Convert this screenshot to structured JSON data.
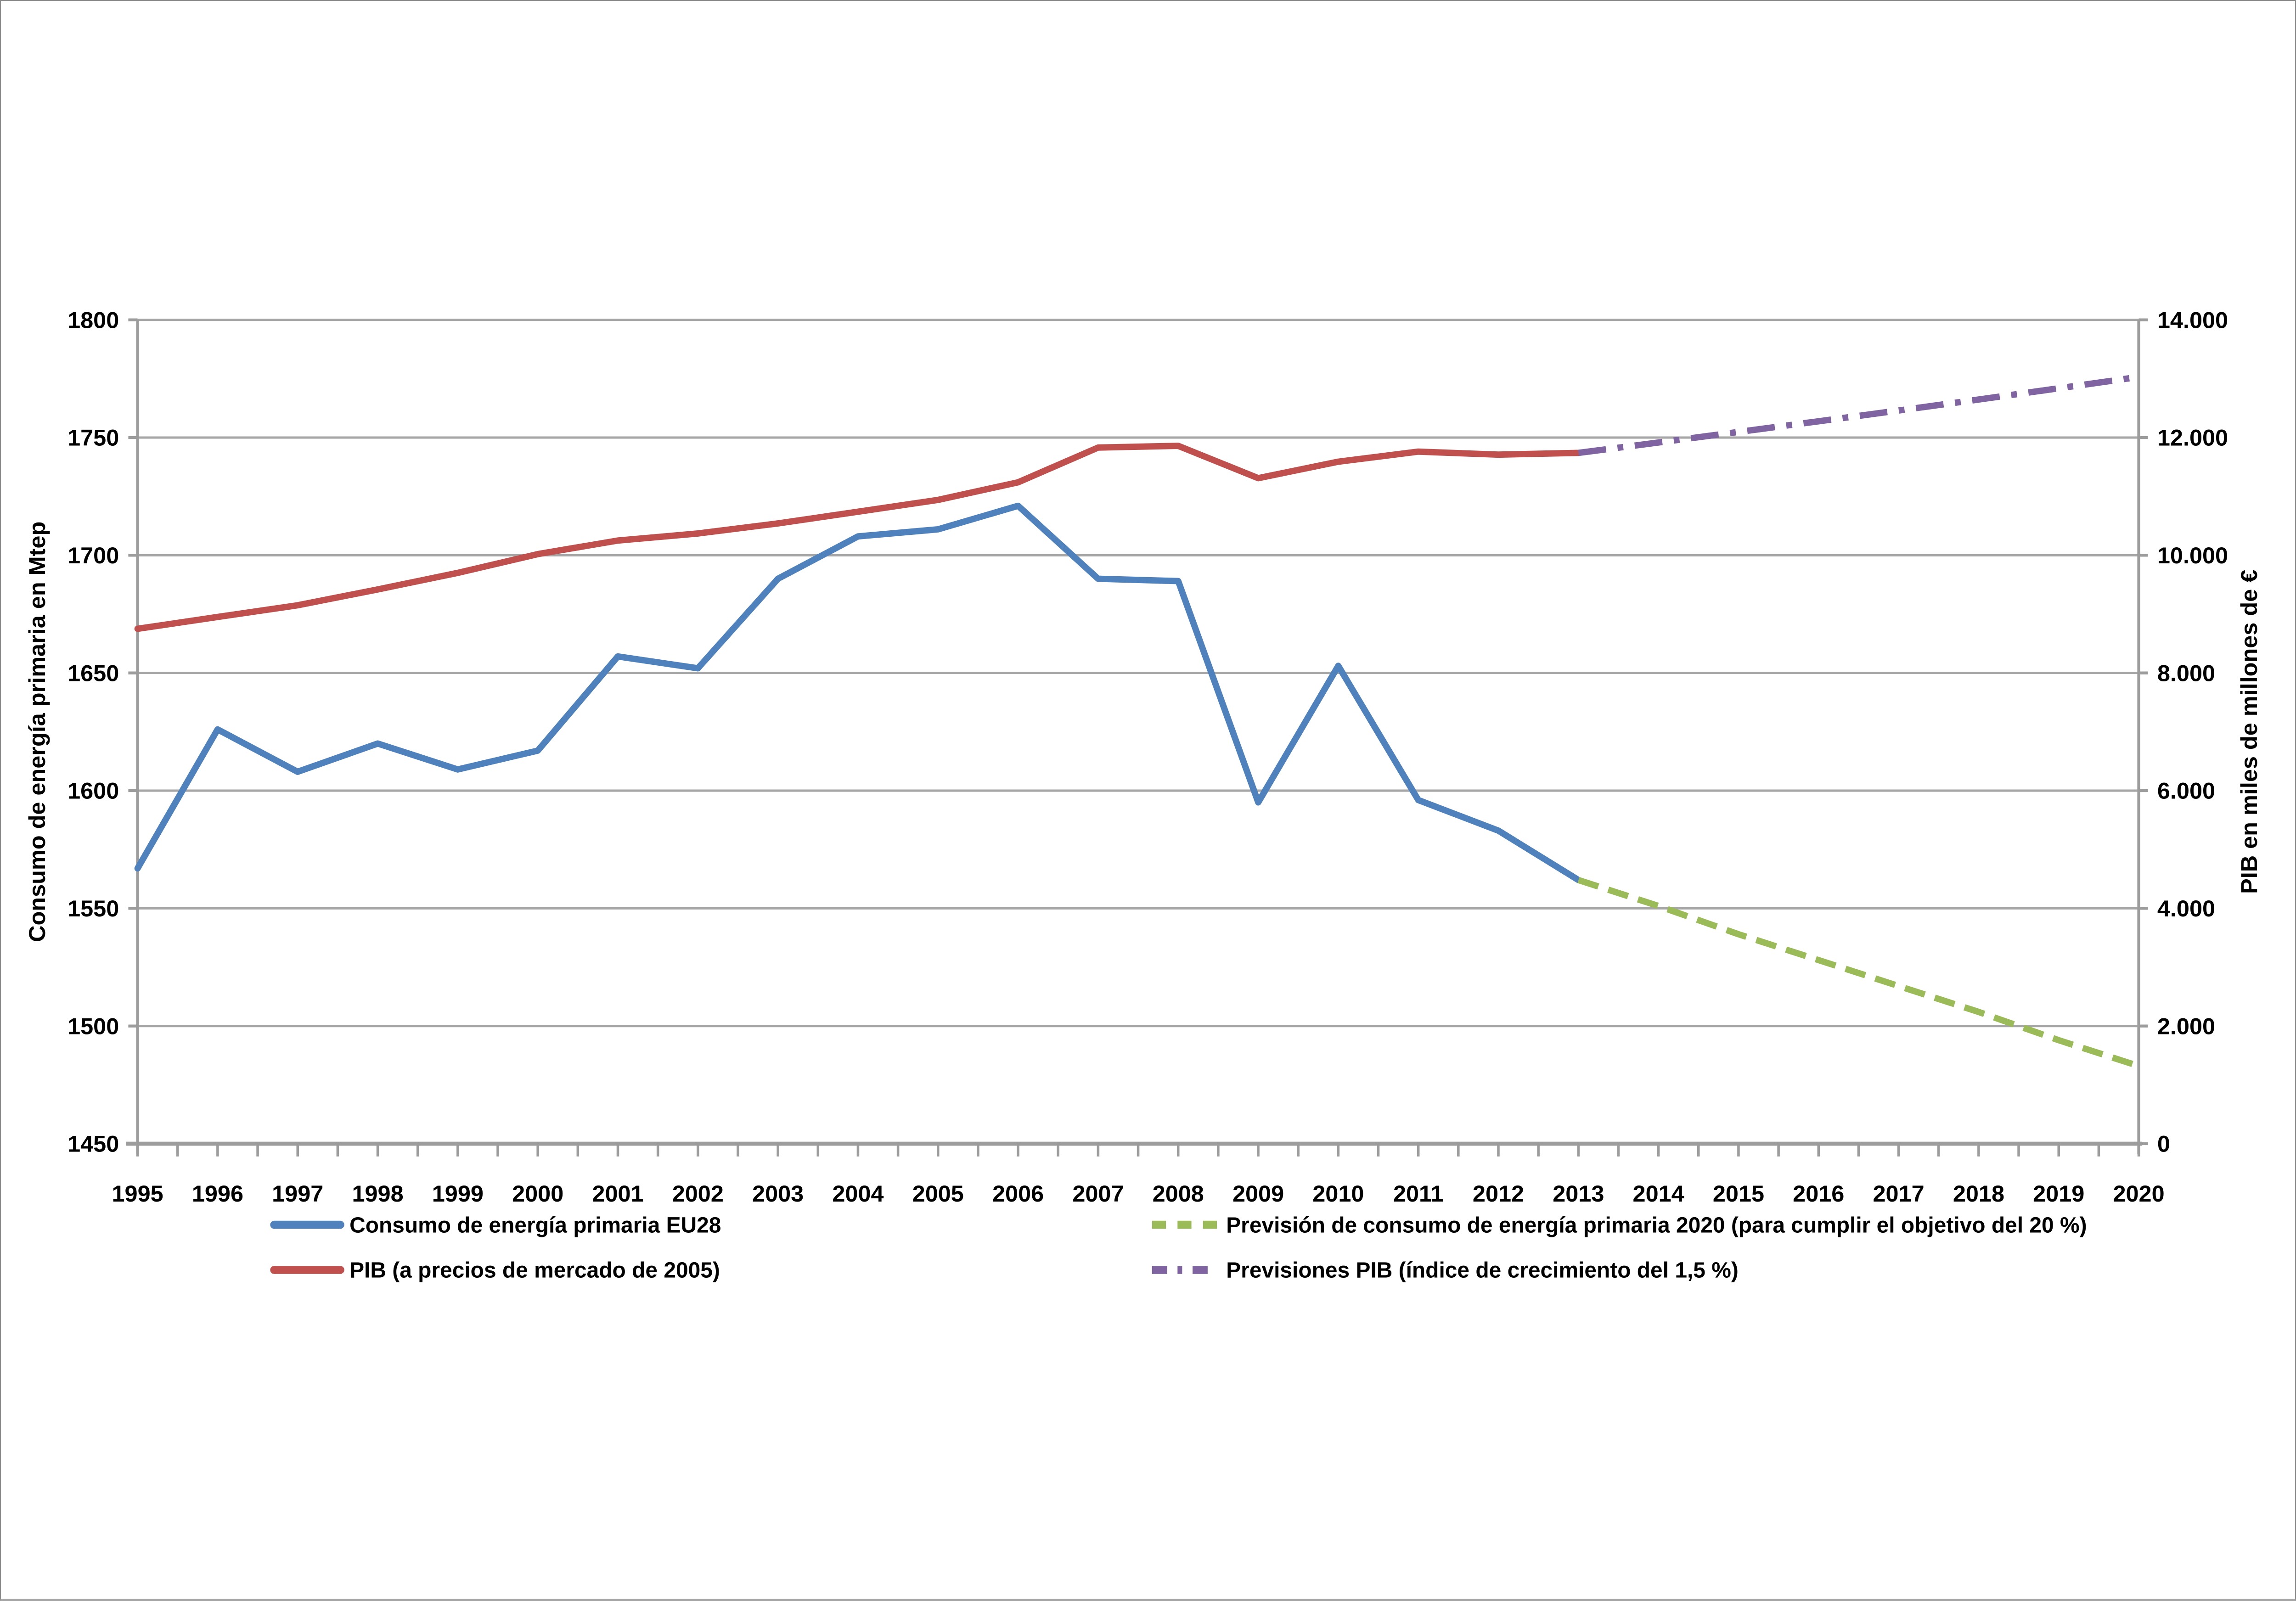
{
  "figure": {
    "background": "#FFFFFF",
    "border_color": "#8C8C8C"
  },
  "colors": {
    "gridline": "#A6A6A6",
    "axis_line": "#9C9C9C",
    "text": "#000000",
    "consumo_blue": "#4F81BD",
    "pib_red": "#C0504D",
    "prevision_green": "#9BBB59",
    "previsiones_purple": "#8064A2"
  },
  "chart_data": {
    "type": "line",
    "title": "",
    "x_tick_labels": [
      "1995",
      "1996",
      "1997",
      "1998",
      "1999",
      "2000",
      "2001",
      "2002",
      "2003",
      "2004",
      "2005",
      "2006",
      "2007",
      "2008",
      "2009",
      "2010",
      "2011",
      "2012",
      "2013",
      "2014",
      "2015",
      "2016",
      "2017",
      "2018",
      "2019",
      "2020"
    ],
    "left_axis": {
      "title": "Consumo de energía primaria en Mtep",
      "min": 1450,
      "max": 1800,
      "step": 50,
      "tick_labels": [
        "1450",
        "1500",
        "1550",
        "1600",
        "1650",
        "1700",
        "1750",
        "1800"
      ]
    },
    "right_axis": {
      "title": "PIB en miles de millones de €",
      "min": 0,
      "max": 14000,
      "step": 2000,
      "tick_labels": [
        "0",
        "2.000",
        "4.000",
        "6.000",
        "8.000",
        "10.000",
        "12.000",
        "14.000"
      ]
    },
    "grid": "horizontal-only",
    "legend_position": "bottom-two-columns",
    "series": [
      {
        "name": "Consumo de energía primaria EU28",
        "axis": "left",
        "color": "#4F81BD",
        "style": "solid",
        "x": [
          1995,
          1996,
          1997,
          1998,
          1999,
          2000,
          2001,
          2002,
          2003,
          2004,
          2005,
          2006,
          2007,
          2008,
          2009,
          2010,
          2011,
          2012,
          2013
        ],
        "values": [
          1567,
          1626,
          1608,
          1620,
          1609,
          1617,
          1657,
          1652,
          1690,
          1708,
          1711,
          1721,
          1690,
          1689,
          1595,
          1653,
          1596,
          1583,
          1562
        ]
      },
      {
        "name": "PIB (a precios de mercado de 2005)",
        "axis": "right",
        "color": "#C0504D",
        "style": "solid",
        "x": [
          1995,
          1996,
          1997,
          1998,
          1999,
          2000,
          2001,
          2002,
          2003,
          2004,
          2005,
          2006,
          2007,
          2008,
          2009,
          2010,
          2011,
          2012,
          2013
        ],
        "values": [
          8750,
          8950,
          9150,
          9420,
          9700,
          10020,
          10250,
          10370,
          10540,
          10740,
          10940,
          11240,
          11830,
          11860,
          11310,
          11590,
          11760,
          11710,
          11740
        ]
      },
      {
        "name": "Previsión de consumo de energía primaria 2020 (para cumplir el objetivo del 20 %)",
        "axis": "left",
        "color": "#9BBB59",
        "style": "dashed",
        "x": [
          2013,
          2014,
          2015,
          2016,
          2017,
          2018,
          2019,
          2020
        ],
        "values": [
          1562,
          1551,
          1539,
          1528,
          1517,
          1506,
          1494,
          1483
        ]
      },
      {
        "name": "Previsiones PIB (índice de crecimiento del 1,5 %)",
        "axis": "right",
        "color": "#8064A2",
        "style": "dash-dot",
        "x": [
          2013,
          2014,
          2015,
          2016,
          2017,
          2018,
          2019,
          2020
        ],
        "values": [
          11740,
          11916,
          12095,
          12276,
          12460,
          12647,
          12837,
          13030
        ]
      }
    ],
    "legend_layout": [
      {
        "series": 0,
        "col": 0,
        "row": 0
      },
      {
        "series": 1,
        "col": 0,
        "row": 1
      },
      {
        "series": 2,
        "col": 1,
        "row": 0
      },
      {
        "series": 3,
        "col": 1,
        "row": 1
      }
    ]
  }
}
